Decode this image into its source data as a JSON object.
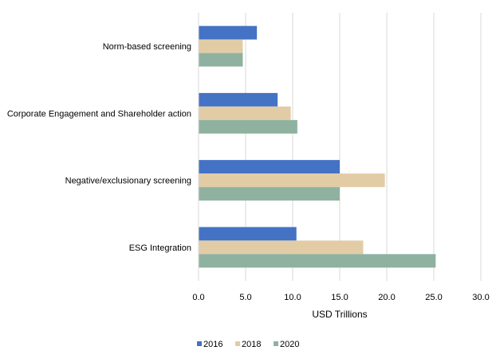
{
  "chart_data": {
    "type": "bar",
    "orientation": "horizontal",
    "title": "",
    "xlabel": "USD Trillions",
    "ylabel": "",
    "xlim": [
      0,
      30
    ],
    "x_ticks": [
      0,
      5,
      10,
      15,
      20,
      25,
      30
    ],
    "x_tick_labels": [
      "0.0",
      "5.0",
      "10.0",
      "15.0",
      "20.0",
      "25.0",
      "30.0"
    ],
    "grid": "vertical",
    "legend_position": "bottom",
    "categories": [
      "Norm-based screening",
      "Corporate Engagement and Shareholder action",
      "Negative/exclusionary screening",
      "ESG Integration"
    ],
    "series": [
      {
        "name": "2016",
        "color": "#4472C4",
        "values": [
          6.2,
          8.4,
          15.0,
          10.4
        ]
      },
      {
        "name": "2018",
        "color": "#E2CCA6",
        "values": [
          4.7,
          9.8,
          19.8,
          17.5
        ]
      },
      {
        "name": "2020",
        "color": "#8FB2A0",
        "values": [
          4.7,
          10.5,
          15.0,
          25.2
        ]
      }
    ]
  }
}
